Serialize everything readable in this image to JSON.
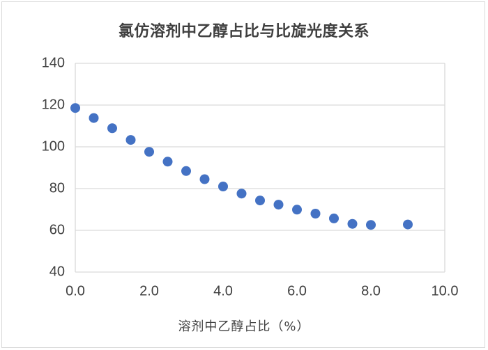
{
  "chart_data": {
    "type": "scatter",
    "title": "氯仿溶剂中乙醇占比与比旋光度关系",
    "xlabel": "溶剂中乙醇占比（%）",
    "ylabel": "",
    "xlim": [
      0,
      10
    ],
    "ylim": [
      40,
      140
    ],
    "x_ticks": [
      "0.0",
      "2.0",
      "4.0",
      "6.0",
      "8.0",
      "10.0"
    ],
    "y_ticks": [
      "40",
      "60",
      "80",
      "100",
      "120",
      "140"
    ],
    "grid": {
      "horizontal": true,
      "vertical": false
    },
    "legend": null,
    "series": [
      {
        "name": "比旋光度",
        "color": "#4472C4",
        "x": [
          0.0,
          0.5,
          1.0,
          1.5,
          2.0,
          2.5,
          3.0,
          3.5,
          4.0,
          4.5,
          5.0,
          5.5,
          6.0,
          6.5,
          7.0,
          7.5,
          8.0,
          9.0
        ],
        "y": [
          118.6,
          113.8,
          108.9,
          103.3,
          97.6,
          92.9,
          88.4,
          84.5,
          81.0,
          77.6,
          74.3,
          72.3,
          69.9,
          68.0,
          65.7,
          63.1,
          62.6,
          62.8
        ]
      }
    ]
  },
  "colors": {
    "marker": "#4472C4",
    "grid": "#d9d9d9",
    "text": "#404040",
    "border": "#d9d9d9"
  }
}
